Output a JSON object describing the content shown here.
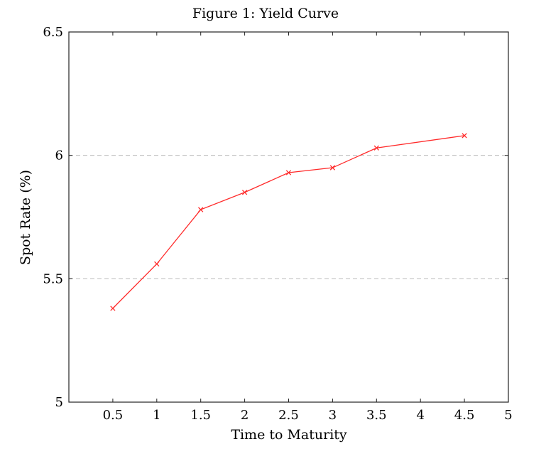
{
  "chart_data": {
    "type": "line",
    "title": "Figure 1: Yield Curve",
    "xlabel": "Time to Maturity",
    "ylabel": "Spot Rate (%)",
    "xlim": [
      0,
      5
    ],
    "ylim": [
      5,
      6.5
    ],
    "x_ticks": [
      "0.5",
      "1",
      "1.5",
      "2",
      "2.5",
      "3",
      "3.5",
      "4",
      "4.5",
      "5"
    ],
    "y_ticks": [
      "5",
      "5.5",
      "6",
      "6.5"
    ],
    "grid": "horizontal dashed at 5.5 and 6",
    "legend": "none",
    "series": [
      {
        "color": "#ff2a2a",
        "marker": "x",
        "x": [
          0.5,
          1,
          1.5,
          2,
          2.5,
          3,
          3.5,
          4.5
        ],
        "y": [
          5.38,
          5.56,
          5.78,
          5.85,
          5.93,
          5.95,
          6.03,
          6.08
        ]
      }
    ]
  }
}
